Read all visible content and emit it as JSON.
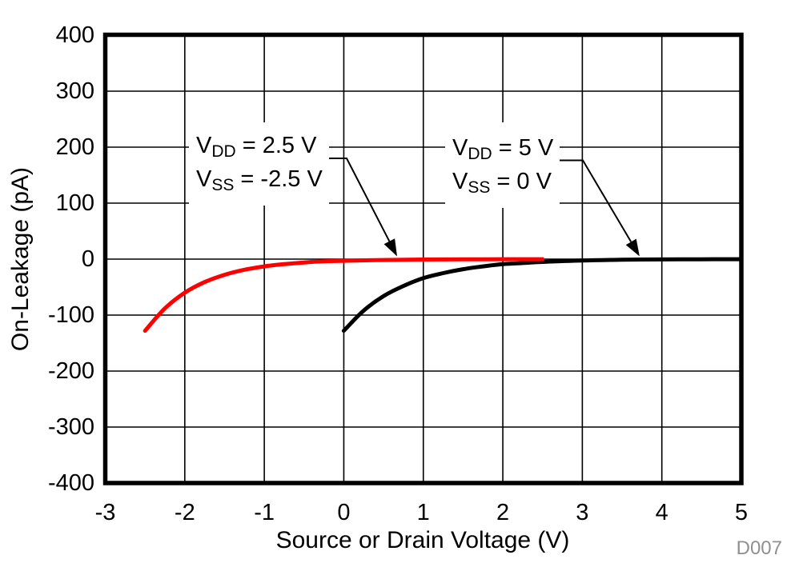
{
  "figure": {
    "watermark": "D007",
    "watermark_color": "#909090",
    "background_color": "#ffffff",
    "frame_color": "#000000"
  },
  "chart_data": {
    "type": "line",
    "title": "",
    "xlabel": "Source or Drain Voltage (V)",
    "ylabel": "On-Leakage (pA)",
    "xlim": [
      -3,
      5
    ],
    "ylim": [
      -400,
      400
    ],
    "xticks": [
      -3,
      -2,
      -1,
      0,
      1,
      2,
      3,
      4,
      5
    ],
    "yticks": [
      400,
      300,
      200,
      100,
      0,
      -100,
      -200,
      -300,
      -400
    ],
    "grid": true,
    "legend_position": "none",
    "series": [
      {
        "name": "VDD = 2.5 V, VSS = -2.5 V",
        "color": "#ff0000",
        "points": [
          [
            -2.5,
            -128
          ],
          [
            -2.25,
            -88
          ],
          [
            -2,
            -60
          ],
          [
            -1.75,
            -41
          ],
          [
            -1.5,
            -28
          ],
          [
            -1.25,
            -19
          ],
          [
            -1,
            -13
          ],
          [
            -0.75,
            -9
          ],
          [
            -0.5,
            -6
          ],
          [
            -0.25,
            -4
          ],
          [
            0,
            -3
          ],
          [
            0.5,
            -1.5
          ],
          [
            1,
            -0.7
          ],
          [
            1.5,
            -0.4
          ],
          [
            2,
            -0.2
          ],
          [
            2.5,
            -0.1
          ]
        ]
      },
      {
        "name": "VDD = 5 V, VSS = 0 V",
        "color": "#000000",
        "points": [
          [
            0,
            -128
          ],
          [
            0.25,
            -92
          ],
          [
            0.5,
            -66
          ],
          [
            0.75,
            -48
          ],
          [
            1,
            -34
          ],
          [
            1.25,
            -25
          ],
          [
            1.5,
            -18
          ],
          [
            1.75,
            -13
          ],
          [
            2,
            -9
          ],
          [
            2.25,
            -7
          ],
          [
            2.5,
            -5
          ],
          [
            3,
            -2.5
          ],
          [
            3.5,
            -1.2
          ],
          [
            4,
            -0.6
          ],
          [
            4.5,
            -0.3
          ],
          [
            5,
            -0.1
          ]
        ]
      }
    ],
    "annotations": [
      {
        "name": "condition-vdd-2p5",
        "lines": [
          {
            "segments": [
              {
                "text": "V"
              },
              {
                "text": "DD",
                "sub": true
              },
              {
                "text": " = 2.5 V"
              }
            ]
          },
          {
            "segments": [
              {
                "text": "V"
              },
              {
                "text": "SS",
                "sub": true
              },
              {
                "text": " = -2.5 V"
              }
            ]
          }
        ],
        "target": {
          "x": 0.67,
          "y": 0
        }
      },
      {
        "name": "condition-vdd-5",
        "lines": [
          {
            "segments": [
              {
                "text": "V"
              },
              {
                "text": "DD",
                "sub": true
              },
              {
                "text": " = 5 V"
              }
            ]
          },
          {
            "segments": [
              {
                "text": "V"
              },
              {
                "text": "SS",
                "sub": true
              },
              {
                "text": " = 0 V"
              }
            ]
          }
        ],
        "target": {
          "x": 3.72,
          "y": 0
        }
      }
    ]
  }
}
